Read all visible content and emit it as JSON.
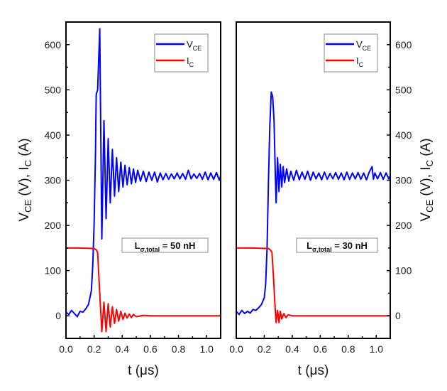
{
  "chart_data": [
    {
      "type": "line",
      "panel": "left",
      "xlabel": [
        {
          "t": "t (μs)"
        }
      ],
      "ylabel": [
        {
          "t": "V"
        },
        {
          "t": "CE",
          "sub": true
        },
        {
          "t": " (V), I"
        },
        {
          "t": "C",
          "sub": true
        },
        {
          "t": " (A)"
        }
      ],
      "y_axis_side": "left",
      "xlim": [
        0,
        1.1
      ],
      "ylim": [
        -50,
        650
      ],
      "xticks": [
        "0.0",
        "0.2",
        "0.4",
        "0.6",
        "0.8",
        "1.0"
      ],
      "xtick_values": [
        0,
        0.2,
        0.4,
        0.6,
        0.8,
        1.0
      ],
      "yticks": [
        "0",
        "100",
        "200",
        "300",
        "400",
        "500",
        "600"
      ],
      "ytick_values": [
        0,
        100,
        200,
        300,
        400,
        500,
        600
      ],
      "grid": false,
      "legend_placement": "top-right",
      "annotation": [
        {
          "t": "L"
        },
        {
          "t": "σ,total",
          "sub": true
        },
        {
          "t": " = 50 nH"
        }
      ],
      "series": [
        {
          "name": "V_CE",
          "label": [
            {
              "t": "V"
            },
            {
              "t": "CE",
              "sub": true
            }
          ],
          "color": "#0000ff",
          "x": [
            0,
            0.02,
            0.04,
            0.06,
            0.08,
            0.1,
            0.12,
            0.14,
            0.16,
            0.18,
            0.19,
            0.2,
            0.21,
            0.215,
            0.225,
            0.24,
            0.255,
            0.27,
            0.285,
            0.3,
            0.315,
            0.33,
            0.345,
            0.36,
            0.375,
            0.39,
            0.405,
            0.42,
            0.435,
            0.45,
            0.465,
            0.48,
            0.495,
            0.51,
            0.53,
            0.55,
            0.57,
            0.59,
            0.61,
            0.63,
            0.65,
            0.67,
            0.69,
            0.71,
            0.73,
            0.75,
            0.77,
            0.79,
            0.81,
            0.83,
            0.85,
            0.87,
            0.89,
            0.91,
            0.93,
            0.95,
            0.97,
            0.99,
            1.01,
            1.03,
            1.05,
            1.07,
            1.09,
            1.1
          ],
          "y": [
            8,
            3,
            12,
            5,
            -2,
            10,
            8,
            15,
            25,
            55,
            110,
            200,
            360,
            490,
            500,
            635,
            170,
            432,
            215,
            392,
            250,
            368,
            265,
            350,
            275,
            340,
            285,
            333,
            290,
            328,
            292,
            325,
            295,
            322,
            298,
            320,
            297,
            318,
            300,
            318,
            296,
            316,
            301,
            315,
            302,
            314,
            303,
            316,
            303,
            315,
            302,
            322,
            303,
            314,
            304,
            315,
            302,
            318,
            301,
            316,
            302,
            317,
            300,
            310
          ]
        },
        {
          "name": "I_C",
          "label": [
            {
              "t": "I"
            },
            {
              "t": "C",
              "sub": true
            }
          ],
          "color": "#ff0000",
          "x": [
            0,
            0.1,
            0.2,
            0.215,
            0.225,
            0.235,
            0.245,
            0.255,
            0.27,
            0.285,
            0.3,
            0.315,
            0.33,
            0.345,
            0.36,
            0.375,
            0.39,
            0.405,
            0.42,
            0.435,
            0.45,
            0.465,
            0.48,
            0.5,
            0.55,
            0.6,
            0.8,
            1.1
          ],
          "y": [
            150,
            150,
            149,
            146,
            140,
            80,
            20,
            -35,
            30,
            -35,
            27,
            -25,
            20,
            -17,
            14,
            -12,
            10,
            -8,
            6,
            -5,
            4,
            -4,
            3,
            -2,
            1,
            0,
            0,
            0
          ]
        }
      ]
    },
    {
      "type": "line",
      "panel": "right",
      "xlabel": [
        {
          "t": "t (μs)"
        }
      ],
      "ylabel": [
        {
          "t": "V"
        },
        {
          "t": "CE",
          "sub": true
        },
        {
          "t": " (V), I"
        },
        {
          "t": "C",
          "sub": true
        },
        {
          "t": " (A)"
        }
      ],
      "y_axis_side": "right",
      "xlim": [
        0,
        1.1
      ],
      "ylim": [
        -50,
        650
      ],
      "xticks": [
        "0.0",
        "0.2",
        "0.4",
        "0.6",
        "0.8",
        "1.0"
      ],
      "xtick_values": [
        0,
        0.2,
        0.4,
        0.6,
        0.8,
        1.0
      ],
      "yticks": [
        "0",
        "100",
        "200",
        "300",
        "400",
        "500",
        "600"
      ],
      "ytick_values": [
        0,
        100,
        200,
        300,
        400,
        500,
        600
      ],
      "grid": false,
      "legend_placement": "top-right",
      "annotation": [
        {
          "t": "L"
        },
        {
          "t": "σ,total",
          "sub": true
        },
        {
          "t": " = 30 nH"
        }
      ],
      "series": [
        {
          "name": "V_CE",
          "label": [
            {
              "t": "V"
            },
            {
              "t": "CE",
              "sub": true
            }
          ],
          "color": "#0000ff",
          "x": [
            0,
            0.02,
            0.04,
            0.06,
            0.08,
            0.1,
            0.12,
            0.14,
            0.16,
            0.18,
            0.2,
            0.21,
            0.22,
            0.23,
            0.24,
            0.25,
            0.26,
            0.27,
            0.28,
            0.285,
            0.295,
            0.305,
            0.315,
            0.325,
            0.335,
            0.345,
            0.36,
            0.375,
            0.39,
            0.41,
            0.43,
            0.45,
            0.47,
            0.49,
            0.51,
            0.53,
            0.55,
            0.57,
            0.59,
            0.61,
            0.63,
            0.65,
            0.67,
            0.69,
            0.71,
            0.73,
            0.75,
            0.77,
            0.79,
            0.81,
            0.83,
            0.85,
            0.87,
            0.89,
            0.91,
            0.93,
            0.95,
            0.97,
            0.98,
            0.99,
            1.01,
            1.03,
            1.05,
            1.07,
            1.09,
            1.1
          ],
          "y": [
            10,
            3,
            12,
            5,
            10,
            6,
            14,
            12,
            18,
            25,
            40,
            70,
            150,
            300,
            420,
            495,
            485,
            430,
            300,
            250,
            350,
            275,
            335,
            285,
            330,
            295,
            325,
            298,
            320,
            300,
            322,
            301,
            318,
            302,
            320,
            300,
            318,
            303,
            316,
            301,
            318,
            302,
            315,
            303,
            317,
            302,
            316,
            301,
            318,
            302,
            316,
            303,
            317,
            302,
            316,
            301,
            318,
            330,
            302,
            316,
            303,
            317,
            302,
            316,
            303,
            310
          ]
        },
        {
          "name": "I_C",
          "label": [
            {
              "t": "I"
            },
            {
              "t": "C",
              "sub": true
            }
          ],
          "color": "#ff0000",
          "x": [
            0,
            0.1,
            0.23,
            0.245,
            0.255,
            0.265,
            0.275,
            0.285,
            0.295,
            0.305,
            0.315,
            0.325,
            0.34,
            0.355,
            0.37,
            0.4,
            0.6,
            0.8,
            1.1
          ],
          "y": [
            150,
            150,
            149,
            145,
            140,
            90,
            30,
            -15,
            12,
            -15,
            10,
            -7,
            5,
            -4,
            2,
            0,
            0,
            0,
            0
          ]
        }
      ]
    }
  ]
}
